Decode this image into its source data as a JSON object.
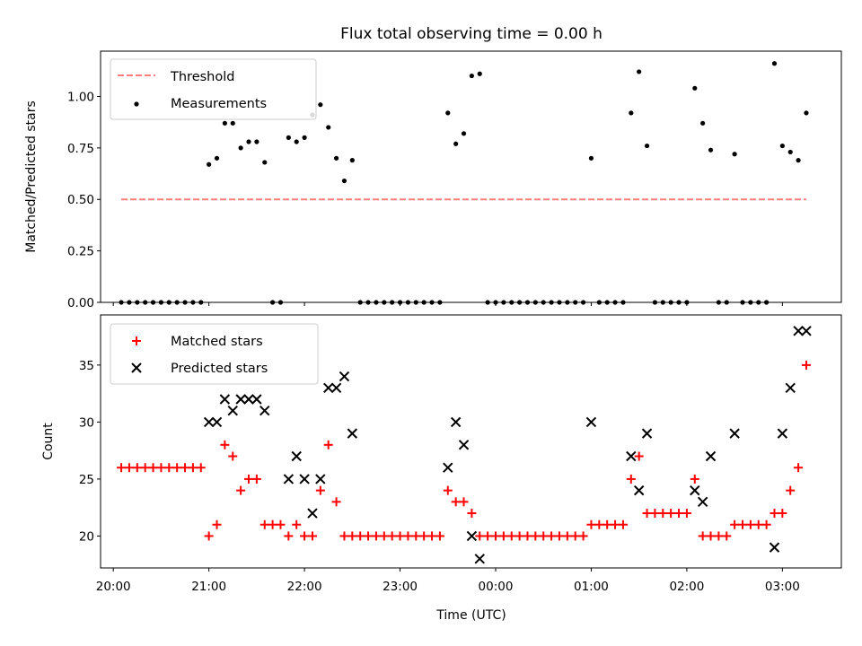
{
  "chart_data": [
    {
      "type": "scatter",
      "title": "Flux total observing time = 0.00 h",
      "ylabel": "Matched/Predicted stars",
      "xlabel": "",
      "ylim": [
        0,
        1.22
      ],
      "xlim": [
        "19:52",
        "03:37"
      ],
      "yticks": [
        "0.00",
        "0.25",
        "0.50",
        "0.75",
        "1.00"
      ],
      "legend_position": "top-left",
      "grid": false,
      "series": [
        {
          "name": "Threshold",
          "kind": "dashed-line",
          "color": "#ff7f7f",
          "x": [
            "20:05",
            "03:15"
          ],
          "y": [
            0.5,
            0.5
          ]
        },
        {
          "name": "Measurements",
          "kind": "points",
          "color": "#000000",
          "points": [
            [
              "20:05",
              0
            ],
            [
              "20:10",
              0
            ],
            [
              "20:15",
              0
            ],
            [
              "20:20",
              0
            ],
            [
              "20:25",
              0
            ],
            [
              "20:30",
              0
            ],
            [
              "20:35",
              0
            ],
            [
              "20:40",
              0
            ],
            [
              "20:45",
              0
            ],
            [
              "20:50",
              0
            ],
            [
              "20:55",
              0
            ],
            [
              "21:00",
              0.67
            ],
            [
              "21:05",
              0.7
            ],
            [
              "21:10",
              0.87
            ],
            [
              "21:15",
              0.87
            ],
            [
              "21:20",
              0.75
            ],
            [
              "21:25",
              0.78
            ],
            [
              "21:30",
              0.78
            ],
            [
              "21:35",
              0.68
            ],
            [
              "21:40",
              0
            ],
            [
              "21:45",
              0
            ],
            [
              "21:50",
              0.8
            ],
            [
              "21:55",
              0.78
            ],
            [
              "22:00",
              0.8
            ],
            [
              "22:05",
              0.91
            ],
            [
              "22:10",
              0.96
            ],
            [
              "22:15",
              0.85
            ],
            [
              "22:20",
              0.7
            ],
            [
              "22:25",
              0.59
            ],
            [
              "22:30",
              0.69
            ],
            [
              "22:35",
              0
            ],
            [
              "22:40",
              0
            ],
            [
              "22:45",
              0
            ],
            [
              "22:50",
              0
            ],
            [
              "22:55",
              0
            ],
            [
              "23:00",
              0
            ],
            [
              "23:05",
              0
            ],
            [
              "23:10",
              0
            ],
            [
              "23:15",
              0
            ],
            [
              "23:20",
              0
            ],
            [
              "23:25",
              0
            ],
            [
              "23:30",
              0.92
            ],
            [
              "23:35",
              0.77
            ],
            [
              "23:40",
              0.82
            ],
            [
              "23:45",
              1.1
            ],
            [
              "23:50",
              1.11
            ],
            [
              "23:55",
              0
            ],
            [
              "00:00",
              0
            ],
            [
              "00:05",
              0
            ],
            [
              "00:10",
              0
            ],
            [
              "00:15",
              0
            ],
            [
              "00:20",
              0
            ],
            [
              "00:25",
              0
            ],
            [
              "00:30",
              0
            ],
            [
              "00:35",
              0
            ],
            [
              "00:40",
              0
            ],
            [
              "00:45",
              0
            ],
            [
              "00:50",
              0
            ],
            [
              "00:55",
              0
            ],
            [
              "01:00",
              0.7
            ],
            [
              "01:05",
              0
            ],
            [
              "01:10",
              0
            ],
            [
              "01:15",
              0
            ],
            [
              "01:20",
              0
            ],
            [
              "01:25",
              0.92
            ],
            [
              "01:30",
              1.12
            ],
            [
              "01:35",
              0.76
            ],
            [
              "01:40",
              0
            ],
            [
              "01:45",
              0
            ],
            [
              "01:50",
              0
            ],
            [
              "01:55",
              0
            ],
            [
              "02:00",
              0
            ],
            [
              "02:05",
              1.04
            ],
            [
              "02:10",
              0.87
            ],
            [
              "02:15",
              0.74
            ],
            [
              "02:20",
              0
            ],
            [
              "02:25",
              0
            ],
            [
              "02:30",
              0.72
            ],
            [
              "02:35",
              0
            ],
            [
              "02:40",
              0
            ],
            [
              "02:45",
              0
            ],
            [
              "02:50",
              0
            ],
            [
              "02:55",
              1.16
            ],
            [
              "03:00",
              0.76
            ],
            [
              "03:05",
              0.73
            ],
            [
              "03:10",
              0.69
            ],
            [
              "03:15",
              0.92
            ]
          ]
        }
      ]
    },
    {
      "type": "scatter",
      "title": "",
      "ylabel": "Count",
      "xlabel": "Time (UTC)",
      "ylim": [
        17.2,
        39.4
      ],
      "xlim": [
        "19:52",
        "03:37"
      ],
      "yticks": [
        "20",
        "25",
        "30",
        "35"
      ],
      "xticks": [
        "20:00",
        "21:00",
        "22:00",
        "23:00",
        "00:00",
        "01:00",
        "02:00",
        "03:00"
      ],
      "legend_position": "top-left",
      "grid": false,
      "series": [
        {
          "name": "Matched stars",
          "kind": "plus",
          "color": "#ff0000",
          "points": [
            [
              "20:05",
              26
            ],
            [
              "20:10",
              26
            ],
            [
              "20:15",
              26
            ],
            [
              "20:20",
              26
            ],
            [
              "20:25",
              26
            ],
            [
              "20:30",
              26
            ],
            [
              "20:35",
              26
            ],
            [
              "20:40",
              26
            ],
            [
              "20:45",
              26
            ],
            [
              "20:50",
              26
            ],
            [
              "20:55",
              26
            ],
            [
              "21:00",
              20
            ],
            [
              "21:05",
              21
            ],
            [
              "21:10",
              28
            ],
            [
              "21:15",
              27
            ],
            [
              "21:20",
              24
            ],
            [
              "21:25",
              25
            ],
            [
              "21:30",
              25
            ],
            [
              "21:35",
              21
            ],
            [
              "21:40",
              21
            ],
            [
              "21:45",
              21
            ],
            [
              "21:50",
              20
            ],
            [
              "21:55",
              21
            ],
            [
              "22:00",
              20
            ],
            [
              "22:05",
              20
            ],
            [
              "22:10",
              24
            ],
            [
              "22:15",
              28
            ],
            [
              "22:20",
              23
            ],
            [
              "22:25",
              20
            ],
            [
              "22:30",
              20
            ],
            [
              "22:35",
              20
            ],
            [
              "22:40",
              20
            ],
            [
              "22:45",
              20
            ],
            [
              "22:50",
              20
            ],
            [
              "22:55",
              20
            ],
            [
              "23:00",
              20
            ],
            [
              "23:05",
              20
            ],
            [
              "23:10",
              20
            ],
            [
              "23:15",
              20
            ],
            [
              "23:20",
              20
            ],
            [
              "23:25",
              20
            ],
            [
              "23:30",
              24
            ],
            [
              "23:35",
              23
            ],
            [
              "23:40",
              23
            ],
            [
              "23:45",
              22
            ],
            [
              "23:50",
              20
            ],
            [
              "23:55",
              20
            ],
            [
              "00:00",
              20
            ],
            [
              "00:05",
              20
            ],
            [
              "00:10",
              20
            ],
            [
              "00:15",
              20
            ],
            [
              "00:20",
              20
            ],
            [
              "00:25",
              20
            ],
            [
              "00:30",
              20
            ],
            [
              "00:35",
              20
            ],
            [
              "00:40",
              20
            ],
            [
              "00:45",
              20
            ],
            [
              "00:50",
              20
            ],
            [
              "00:55",
              20
            ],
            [
              "01:00",
              21
            ],
            [
              "01:05",
              21
            ],
            [
              "01:10",
              21
            ],
            [
              "01:15",
              21
            ],
            [
              "01:20",
              21
            ],
            [
              "01:25",
              25
            ],
            [
              "01:30",
              27
            ],
            [
              "01:35",
              22
            ],
            [
              "01:40",
              22
            ],
            [
              "01:45",
              22
            ],
            [
              "01:50",
              22
            ],
            [
              "01:55",
              22
            ],
            [
              "02:00",
              22
            ],
            [
              "02:05",
              25
            ],
            [
              "02:10",
              20
            ],
            [
              "02:15",
              20
            ],
            [
              "02:20",
              20
            ],
            [
              "02:25",
              20
            ],
            [
              "02:30",
              21
            ],
            [
              "02:35",
              21
            ],
            [
              "02:40",
              21
            ],
            [
              "02:45",
              21
            ],
            [
              "02:50",
              21
            ],
            [
              "02:55",
              22
            ],
            [
              "03:00",
              22
            ],
            [
              "03:05",
              24
            ],
            [
              "03:10",
              26
            ],
            [
              "03:15",
              35
            ]
          ]
        },
        {
          "name": "Predicted stars",
          "kind": "x",
          "color": "#000000",
          "points": [
            [
              "21:00",
              30
            ],
            [
              "21:05",
              30
            ],
            [
              "21:10",
              32
            ],
            [
              "21:15",
              31
            ],
            [
              "21:20",
              32
            ],
            [
              "21:25",
              32
            ],
            [
              "21:30",
              32
            ],
            [
              "21:35",
              31
            ],
            [
              "21:50",
              25
            ],
            [
              "21:55",
              27
            ],
            [
              "22:00",
              25
            ],
            [
              "22:05",
              22
            ],
            [
              "22:10",
              25
            ],
            [
              "22:15",
              33
            ],
            [
              "22:20",
              33
            ],
            [
              "22:25",
              34
            ],
            [
              "22:30",
              29
            ],
            [
              "23:30",
              26
            ],
            [
              "23:35",
              30
            ],
            [
              "23:40",
              28
            ],
            [
              "23:45",
              20
            ],
            [
              "23:50",
              18
            ],
            [
              "01:00",
              30
            ],
            [
              "01:25",
              27
            ],
            [
              "01:30",
              24
            ],
            [
              "01:35",
              29
            ],
            [
              "02:05",
              24
            ],
            [
              "02:10",
              23
            ],
            [
              "02:15",
              27
            ],
            [
              "02:30",
              29
            ],
            [
              "02:55",
              19
            ],
            [
              "03:00",
              29
            ],
            [
              "03:05",
              33
            ],
            [
              "03:10",
              38
            ],
            [
              "03:15",
              38
            ]
          ]
        }
      ]
    }
  ]
}
